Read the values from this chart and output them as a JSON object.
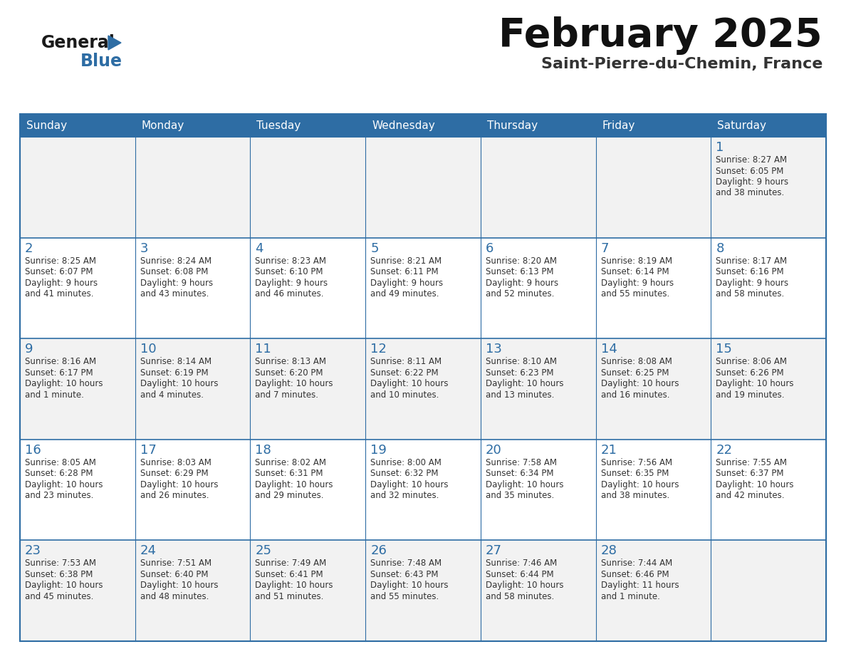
{
  "title": "February 2025",
  "subtitle": "Saint-Pierre-du-Chemin, France",
  "days_of_week": [
    "Sunday",
    "Monday",
    "Tuesday",
    "Wednesday",
    "Thursday",
    "Friday",
    "Saturday"
  ],
  "header_bg": "#2E6DA4",
  "header_fg": "#FFFFFF",
  "cell_bg_gray": "#F2F2F2",
  "cell_bg_white": "#FFFFFF",
  "border_color": "#2E6DA4",
  "text_color": "#333333",
  "day_num_color": "#2E6DA4",
  "calendar_data": [
    [
      null,
      null,
      null,
      null,
      null,
      null,
      {
        "day": "1",
        "sunrise": "8:27 AM",
        "sunset": "6:05 PM",
        "daylight": "9 hours",
        "daylight2": "and 38 minutes."
      }
    ],
    [
      {
        "day": "2",
        "sunrise": "8:25 AM",
        "sunset": "6:07 PM",
        "daylight": "9 hours",
        "daylight2": "and 41 minutes."
      },
      {
        "day": "3",
        "sunrise": "8:24 AM",
        "sunset": "6:08 PM",
        "daylight": "9 hours",
        "daylight2": "and 43 minutes."
      },
      {
        "day": "4",
        "sunrise": "8:23 AM",
        "sunset": "6:10 PM",
        "daylight": "9 hours",
        "daylight2": "and 46 minutes."
      },
      {
        "day": "5",
        "sunrise": "8:21 AM",
        "sunset": "6:11 PM",
        "daylight": "9 hours",
        "daylight2": "and 49 minutes."
      },
      {
        "day": "6",
        "sunrise": "8:20 AM",
        "sunset": "6:13 PM",
        "daylight": "9 hours",
        "daylight2": "and 52 minutes."
      },
      {
        "day": "7",
        "sunrise": "8:19 AM",
        "sunset": "6:14 PM",
        "daylight": "9 hours",
        "daylight2": "and 55 minutes."
      },
      {
        "day": "8",
        "sunrise": "8:17 AM",
        "sunset": "6:16 PM",
        "daylight": "9 hours",
        "daylight2": "and 58 minutes."
      }
    ],
    [
      {
        "day": "9",
        "sunrise": "8:16 AM",
        "sunset": "6:17 PM",
        "daylight": "10 hours",
        "daylight2": "and 1 minute."
      },
      {
        "day": "10",
        "sunrise": "8:14 AM",
        "sunset": "6:19 PM",
        "daylight": "10 hours",
        "daylight2": "and 4 minutes."
      },
      {
        "day": "11",
        "sunrise": "8:13 AM",
        "sunset": "6:20 PM",
        "daylight": "10 hours",
        "daylight2": "and 7 minutes."
      },
      {
        "day": "12",
        "sunrise": "8:11 AM",
        "sunset": "6:22 PM",
        "daylight": "10 hours",
        "daylight2": "and 10 minutes."
      },
      {
        "day": "13",
        "sunrise": "8:10 AM",
        "sunset": "6:23 PM",
        "daylight": "10 hours",
        "daylight2": "and 13 minutes."
      },
      {
        "day": "14",
        "sunrise": "8:08 AM",
        "sunset": "6:25 PM",
        "daylight": "10 hours",
        "daylight2": "and 16 minutes."
      },
      {
        "day": "15",
        "sunrise": "8:06 AM",
        "sunset": "6:26 PM",
        "daylight": "10 hours",
        "daylight2": "and 19 minutes."
      }
    ],
    [
      {
        "day": "16",
        "sunrise": "8:05 AM",
        "sunset": "6:28 PM",
        "daylight": "10 hours",
        "daylight2": "and 23 minutes."
      },
      {
        "day": "17",
        "sunrise": "8:03 AM",
        "sunset": "6:29 PM",
        "daylight": "10 hours",
        "daylight2": "and 26 minutes."
      },
      {
        "day": "18",
        "sunrise": "8:02 AM",
        "sunset": "6:31 PM",
        "daylight": "10 hours",
        "daylight2": "and 29 minutes."
      },
      {
        "day": "19",
        "sunrise": "8:00 AM",
        "sunset": "6:32 PM",
        "daylight": "10 hours",
        "daylight2": "and 32 minutes."
      },
      {
        "day": "20",
        "sunrise": "7:58 AM",
        "sunset": "6:34 PM",
        "daylight": "10 hours",
        "daylight2": "and 35 minutes."
      },
      {
        "day": "21",
        "sunrise": "7:56 AM",
        "sunset": "6:35 PM",
        "daylight": "10 hours",
        "daylight2": "and 38 minutes."
      },
      {
        "day": "22",
        "sunrise": "7:55 AM",
        "sunset": "6:37 PM",
        "daylight": "10 hours",
        "daylight2": "and 42 minutes."
      }
    ],
    [
      {
        "day": "23",
        "sunrise": "7:53 AM",
        "sunset": "6:38 PM",
        "daylight": "10 hours",
        "daylight2": "and 45 minutes."
      },
      {
        "day": "24",
        "sunrise": "7:51 AM",
        "sunset": "6:40 PM",
        "daylight": "10 hours",
        "daylight2": "and 48 minutes."
      },
      {
        "day": "25",
        "sunrise": "7:49 AM",
        "sunset": "6:41 PM",
        "daylight": "10 hours",
        "daylight2": "and 51 minutes."
      },
      {
        "day": "26",
        "sunrise": "7:48 AM",
        "sunset": "6:43 PM",
        "daylight": "10 hours",
        "daylight2": "and 55 minutes."
      },
      {
        "day": "27",
        "sunrise": "7:46 AM",
        "sunset": "6:44 PM",
        "daylight": "10 hours",
        "daylight2": "and 58 minutes."
      },
      {
        "day": "28",
        "sunrise": "7:44 AM",
        "sunset": "6:46 PM",
        "daylight": "11 hours",
        "daylight2": "and 1 minute."
      },
      null
    ]
  ]
}
